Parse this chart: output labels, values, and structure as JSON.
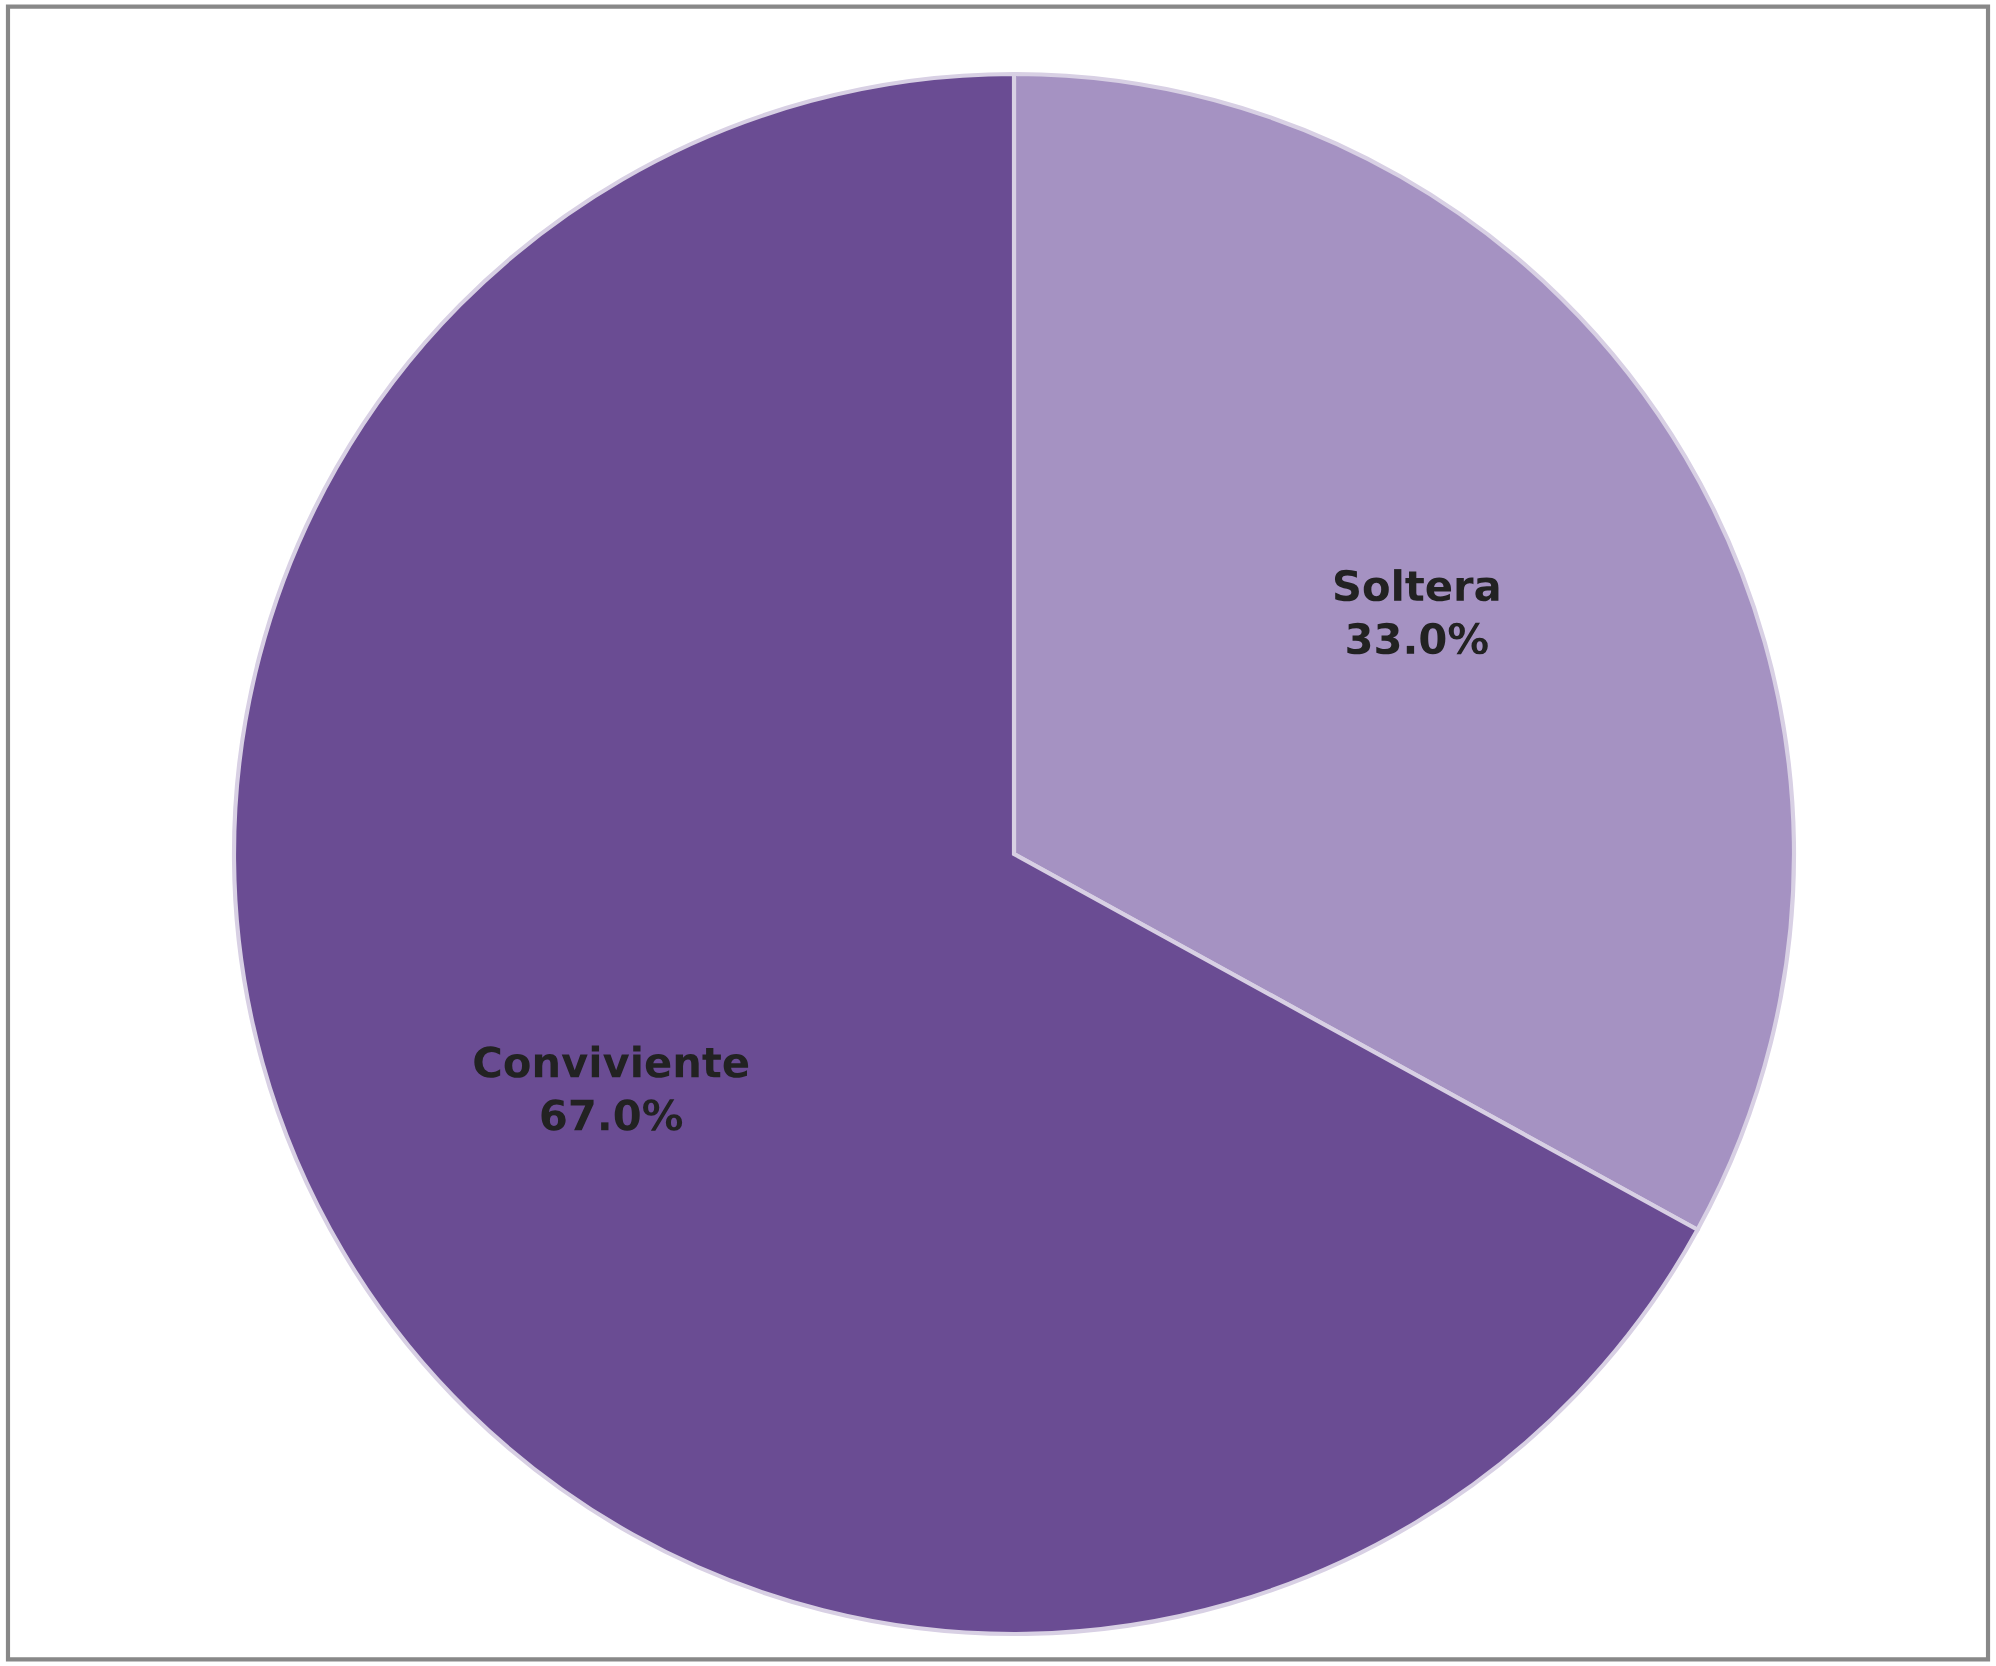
{
  "chart_data": {
    "type": "pie",
    "categories": [
      "Soltera",
      "Conviviente"
    ],
    "values": [
      33.0,
      67.0
    ],
    "value_labels": [
      "33.0%",
      "67.0%"
    ],
    "colors": [
      "#a592c2",
      "#6a4c93"
    ],
    "legend": false
  }
}
